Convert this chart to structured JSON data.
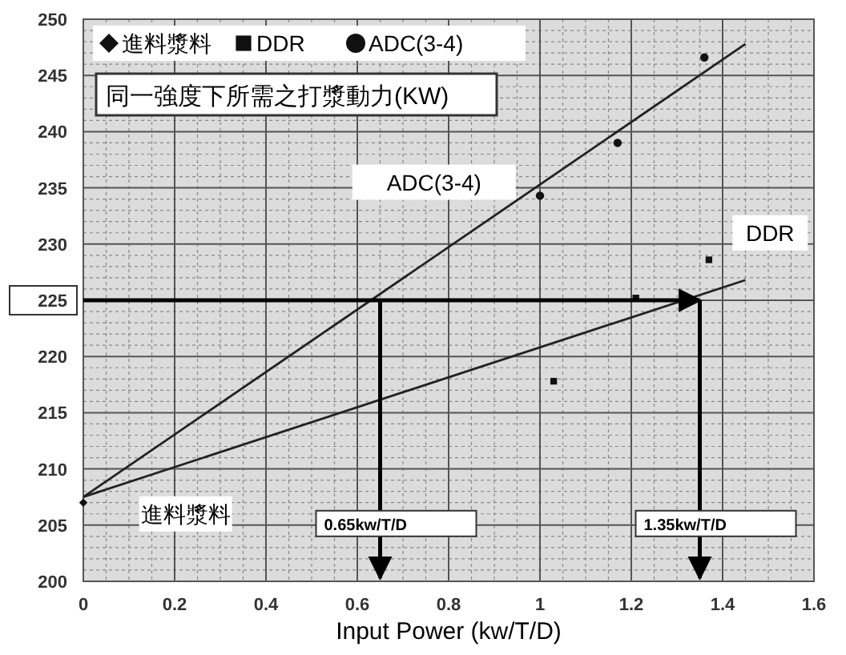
{
  "chart_data": {
    "type": "scatter",
    "title": "同一強度下所需之打漿動力(KW)",
    "xlabel": "Input Power (kw/T/D)",
    "xlim": [
      0,
      1.6
    ],
    "xticks": [
      0,
      0.2,
      0.4,
      0.6,
      0.8,
      1,
      1.2,
      1.4,
      1.6
    ],
    "ylim": [
      200,
      250
    ],
    "yticks": [
      200,
      205,
      210,
      215,
      220,
      225,
      230,
      235,
      240,
      245,
      250
    ],
    "grid": true,
    "legend": "top left",
    "series": [
      {
        "name": "進料漿料",
        "marker": "diamond",
        "color": "#111111",
        "x": [
          0
        ],
        "values": [
          207
        ]
      },
      {
        "name": "DDR",
        "marker": "square",
        "color": "#111111",
        "x": [
          1.03,
          1.21,
          1.37
        ],
        "values": [
          217.8,
          225.2,
          228.6
        ]
      },
      {
        "name": "ADC(3-4)",
        "marker": "circle",
        "color": "#111111",
        "x": [
          1.0,
          1.17,
          1.36
        ],
        "values": [
          234.3,
          239,
          246.6
        ]
      },
      {
        "type": "line",
        "marker": "none",
        "color": "#222222",
        "x": [
          0,
          1.45
        ],
        "values": [
          207.5,
          247.8
        ]
      },
      {
        "type": "line",
        "marker": "none",
        "color": "#222222",
        "x": [
          0,
          1.45
        ],
        "values": [
          207.5,
          226.8
        ]
      }
    ],
    "ref_lines": [
      {
        "axis": "y",
        "value": 225,
        "color": "#000000"
      },
      {
        "axis": "x",
        "value": 0.65,
        "label": "0.65kw/T/D",
        "color": "#000000"
      },
      {
        "axis": "x",
        "value": 1.35,
        "label": "1.35kw/T/D",
        "color": "#000000"
      }
    ],
    "annotations": [
      "ADC(3-4)",
      "DDR",
      "進料漿料"
    ]
  }
}
